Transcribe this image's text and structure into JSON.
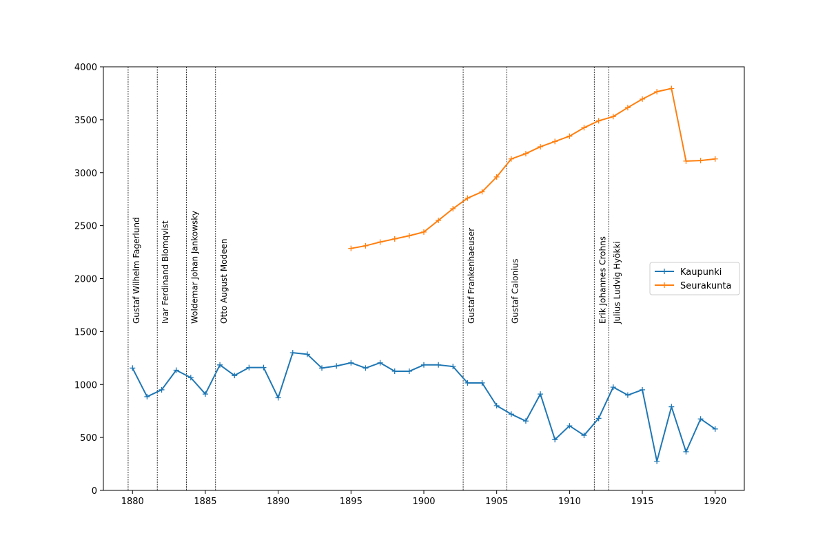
{
  "chart_data": {
    "type": "line",
    "title": "",
    "xlabel": "",
    "ylabel": "",
    "xlim": [
      1878,
      1922
    ],
    "ylim": [
      0,
      4000
    ],
    "x_ticks": [
      1880,
      1885,
      1890,
      1895,
      1900,
      1905,
      1910,
      1915,
      1920
    ],
    "y_ticks": [
      0,
      500,
      1000,
      1500,
      2000,
      2500,
      3000,
      3500,
      4000
    ],
    "grid": false,
    "legend_position": "center-right",
    "series": [
      {
        "name": "Kaupunki",
        "color": "#1f77b4",
        "marker": "plus",
        "x": [
          1880,
          1881,
          1882,
          1883,
          1884,
          1885,
          1886,
          1887,
          1888,
          1889,
          1890,
          1891,
          1892,
          1893,
          1894,
          1895,
          1896,
          1897,
          1898,
          1899,
          1900,
          1901,
          1902,
          1903,
          1904,
          1905,
          1906,
          1907,
          1908,
          1909,
          1910,
          1911,
          1912,
          1913,
          1914,
          1915,
          1916,
          1917,
          1918,
          1919,
          1920
        ],
        "values": [
          1155,
          885,
          950,
          1135,
          1065,
          910,
          1185,
          1085,
          1160,
          1160,
          875,
          1300,
          1285,
          1155,
          1175,
          1205,
          1155,
          1205,
          1125,
          1125,
          1185,
          1185,
          1170,
          1015,
          1015,
          800,
          720,
          655,
          910,
          480,
          610,
          520,
          680,
          975,
          900,
          950,
          275,
          790,
          365,
          675,
          580
        ]
      },
      {
        "name": "Seurakunta",
        "color": "#ff7f0e",
        "marker": "plus",
        "x": [
          1895,
          1896,
          1897,
          1898,
          1899,
          1900,
          1901,
          1902,
          1903,
          1904,
          1905,
          1906,
          1907,
          1908,
          1909,
          1910,
          1911,
          1912,
          1913,
          1914,
          1915,
          1916,
          1917,
          1918,
          1919,
          1920
        ],
        "values": [
          2285,
          2310,
          2345,
          2375,
          2405,
          2440,
          2550,
          2660,
          2760,
          2820,
          2960,
          3130,
          3180,
          3245,
          3295,
          3345,
          3425,
          3490,
          3530,
          3615,
          3695,
          3765,
          3795,
          3110,
          3115,
          3130
        ]
      }
    ],
    "vertical_lines": [
      {
        "x": 1879.7,
        "label": "Gustaf Wilhelm Fagerlund"
      },
      {
        "x": 1881.7,
        "label": "Ivar Ferdinand Blomqvist"
      },
      {
        "x": 1883.7,
        "label": "Woldemar Johan Jankowsky"
      },
      {
        "x": 1885.7,
        "label": "Otto August Modeen"
      },
      {
        "x": 1902.7,
        "label": "Gustaf Frankenhaeuser"
      },
      {
        "x": 1905.7,
        "label": "Gustaf Calonius"
      },
      {
        "x": 1911.7,
        "label": "Erik Johannes Crohns"
      },
      {
        "x": 1912.7,
        "label": "Julius Ludvig Hyökki"
      }
    ]
  }
}
